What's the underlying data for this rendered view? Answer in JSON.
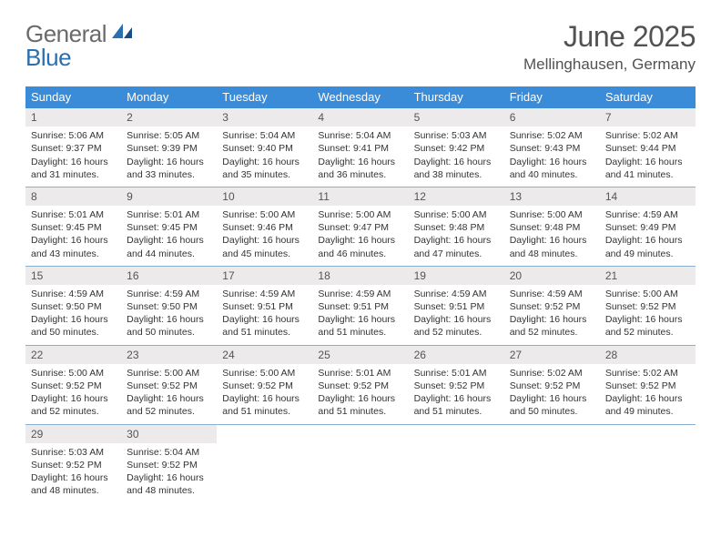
{
  "colors": {
    "header_bg": "#3a8bd8",
    "header_text": "#ffffff",
    "daynum_bg": "#eceaea",
    "daynum_text": "#555555",
    "week_border": "#8aaed0",
    "page_bg": "#ffffff",
    "body_text": "#333333",
    "title_text": "#525252",
    "logo_gray": "#6a6a6a",
    "logo_blue": "#2a6fb0"
  },
  "fonts": {
    "base_family": "Arial, Helvetica, sans-serif",
    "title_size_pt": 24,
    "body_size_pt": 8
  },
  "logo": {
    "word1": "General",
    "word2": "Blue"
  },
  "title": "June 2025",
  "location": "Mellinghausen, Germany",
  "dow": [
    "Sunday",
    "Monday",
    "Tuesday",
    "Wednesday",
    "Thursday",
    "Friday",
    "Saturday"
  ],
  "weeks": [
    [
      {
        "n": "1",
        "sr": "5:06 AM",
        "ss": "9:37 PM",
        "dl": "16 hours and 31 minutes."
      },
      {
        "n": "2",
        "sr": "5:05 AM",
        "ss": "9:39 PM",
        "dl": "16 hours and 33 minutes."
      },
      {
        "n": "3",
        "sr": "5:04 AM",
        "ss": "9:40 PM",
        "dl": "16 hours and 35 minutes."
      },
      {
        "n": "4",
        "sr": "5:04 AM",
        "ss": "9:41 PM",
        "dl": "16 hours and 36 minutes."
      },
      {
        "n": "5",
        "sr": "5:03 AM",
        "ss": "9:42 PM",
        "dl": "16 hours and 38 minutes."
      },
      {
        "n": "6",
        "sr": "5:02 AM",
        "ss": "9:43 PM",
        "dl": "16 hours and 40 minutes."
      },
      {
        "n": "7",
        "sr": "5:02 AM",
        "ss": "9:44 PM",
        "dl": "16 hours and 41 minutes."
      }
    ],
    [
      {
        "n": "8",
        "sr": "5:01 AM",
        "ss": "9:45 PM",
        "dl": "16 hours and 43 minutes."
      },
      {
        "n": "9",
        "sr": "5:01 AM",
        "ss": "9:45 PM",
        "dl": "16 hours and 44 minutes."
      },
      {
        "n": "10",
        "sr": "5:00 AM",
        "ss": "9:46 PM",
        "dl": "16 hours and 45 minutes."
      },
      {
        "n": "11",
        "sr": "5:00 AM",
        "ss": "9:47 PM",
        "dl": "16 hours and 46 minutes."
      },
      {
        "n": "12",
        "sr": "5:00 AM",
        "ss": "9:48 PM",
        "dl": "16 hours and 47 minutes."
      },
      {
        "n": "13",
        "sr": "5:00 AM",
        "ss": "9:48 PM",
        "dl": "16 hours and 48 minutes."
      },
      {
        "n": "14",
        "sr": "4:59 AM",
        "ss": "9:49 PM",
        "dl": "16 hours and 49 minutes."
      }
    ],
    [
      {
        "n": "15",
        "sr": "4:59 AM",
        "ss": "9:50 PM",
        "dl": "16 hours and 50 minutes."
      },
      {
        "n": "16",
        "sr": "4:59 AM",
        "ss": "9:50 PM",
        "dl": "16 hours and 50 minutes."
      },
      {
        "n": "17",
        "sr": "4:59 AM",
        "ss": "9:51 PM",
        "dl": "16 hours and 51 minutes."
      },
      {
        "n": "18",
        "sr": "4:59 AM",
        "ss": "9:51 PM",
        "dl": "16 hours and 51 minutes."
      },
      {
        "n": "19",
        "sr": "4:59 AM",
        "ss": "9:51 PM",
        "dl": "16 hours and 52 minutes."
      },
      {
        "n": "20",
        "sr": "4:59 AM",
        "ss": "9:52 PM",
        "dl": "16 hours and 52 minutes."
      },
      {
        "n": "21",
        "sr": "5:00 AM",
        "ss": "9:52 PM",
        "dl": "16 hours and 52 minutes."
      }
    ],
    [
      {
        "n": "22",
        "sr": "5:00 AM",
        "ss": "9:52 PM",
        "dl": "16 hours and 52 minutes."
      },
      {
        "n": "23",
        "sr": "5:00 AM",
        "ss": "9:52 PM",
        "dl": "16 hours and 52 minutes."
      },
      {
        "n": "24",
        "sr": "5:00 AM",
        "ss": "9:52 PM",
        "dl": "16 hours and 51 minutes."
      },
      {
        "n": "25",
        "sr": "5:01 AM",
        "ss": "9:52 PM",
        "dl": "16 hours and 51 minutes."
      },
      {
        "n": "26",
        "sr": "5:01 AM",
        "ss": "9:52 PM",
        "dl": "16 hours and 51 minutes."
      },
      {
        "n": "27",
        "sr": "5:02 AM",
        "ss": "9:52 PM",
        "dl": "16 hours and 50 minutes."
      },
      {
        "n": "28",
        "sr": "5:02 AM",
        "ss": "9:52 PM",
        "dl": "16 hours and 49 minutes."
      }
    ],
    [
      {
        "n": "29",
        "sr": "5:03 AM",
        "ss": "9:52 PM",
        "dl": "16 hours and 48 minutes."
      },
      {
        "n": "30",
        "sr": "5:04 AM",
        "ss": "9:52 PM",
        "dl": "16 hours and 48 minutes."
      },
      null,
      null,
      null,
      null,
      null
    ]
  ],
  "labels": {
    "sunrise": "Sunrise:",
    "sunset": "Sunset:",
    "daylight": "Daylight:"
  }
}
